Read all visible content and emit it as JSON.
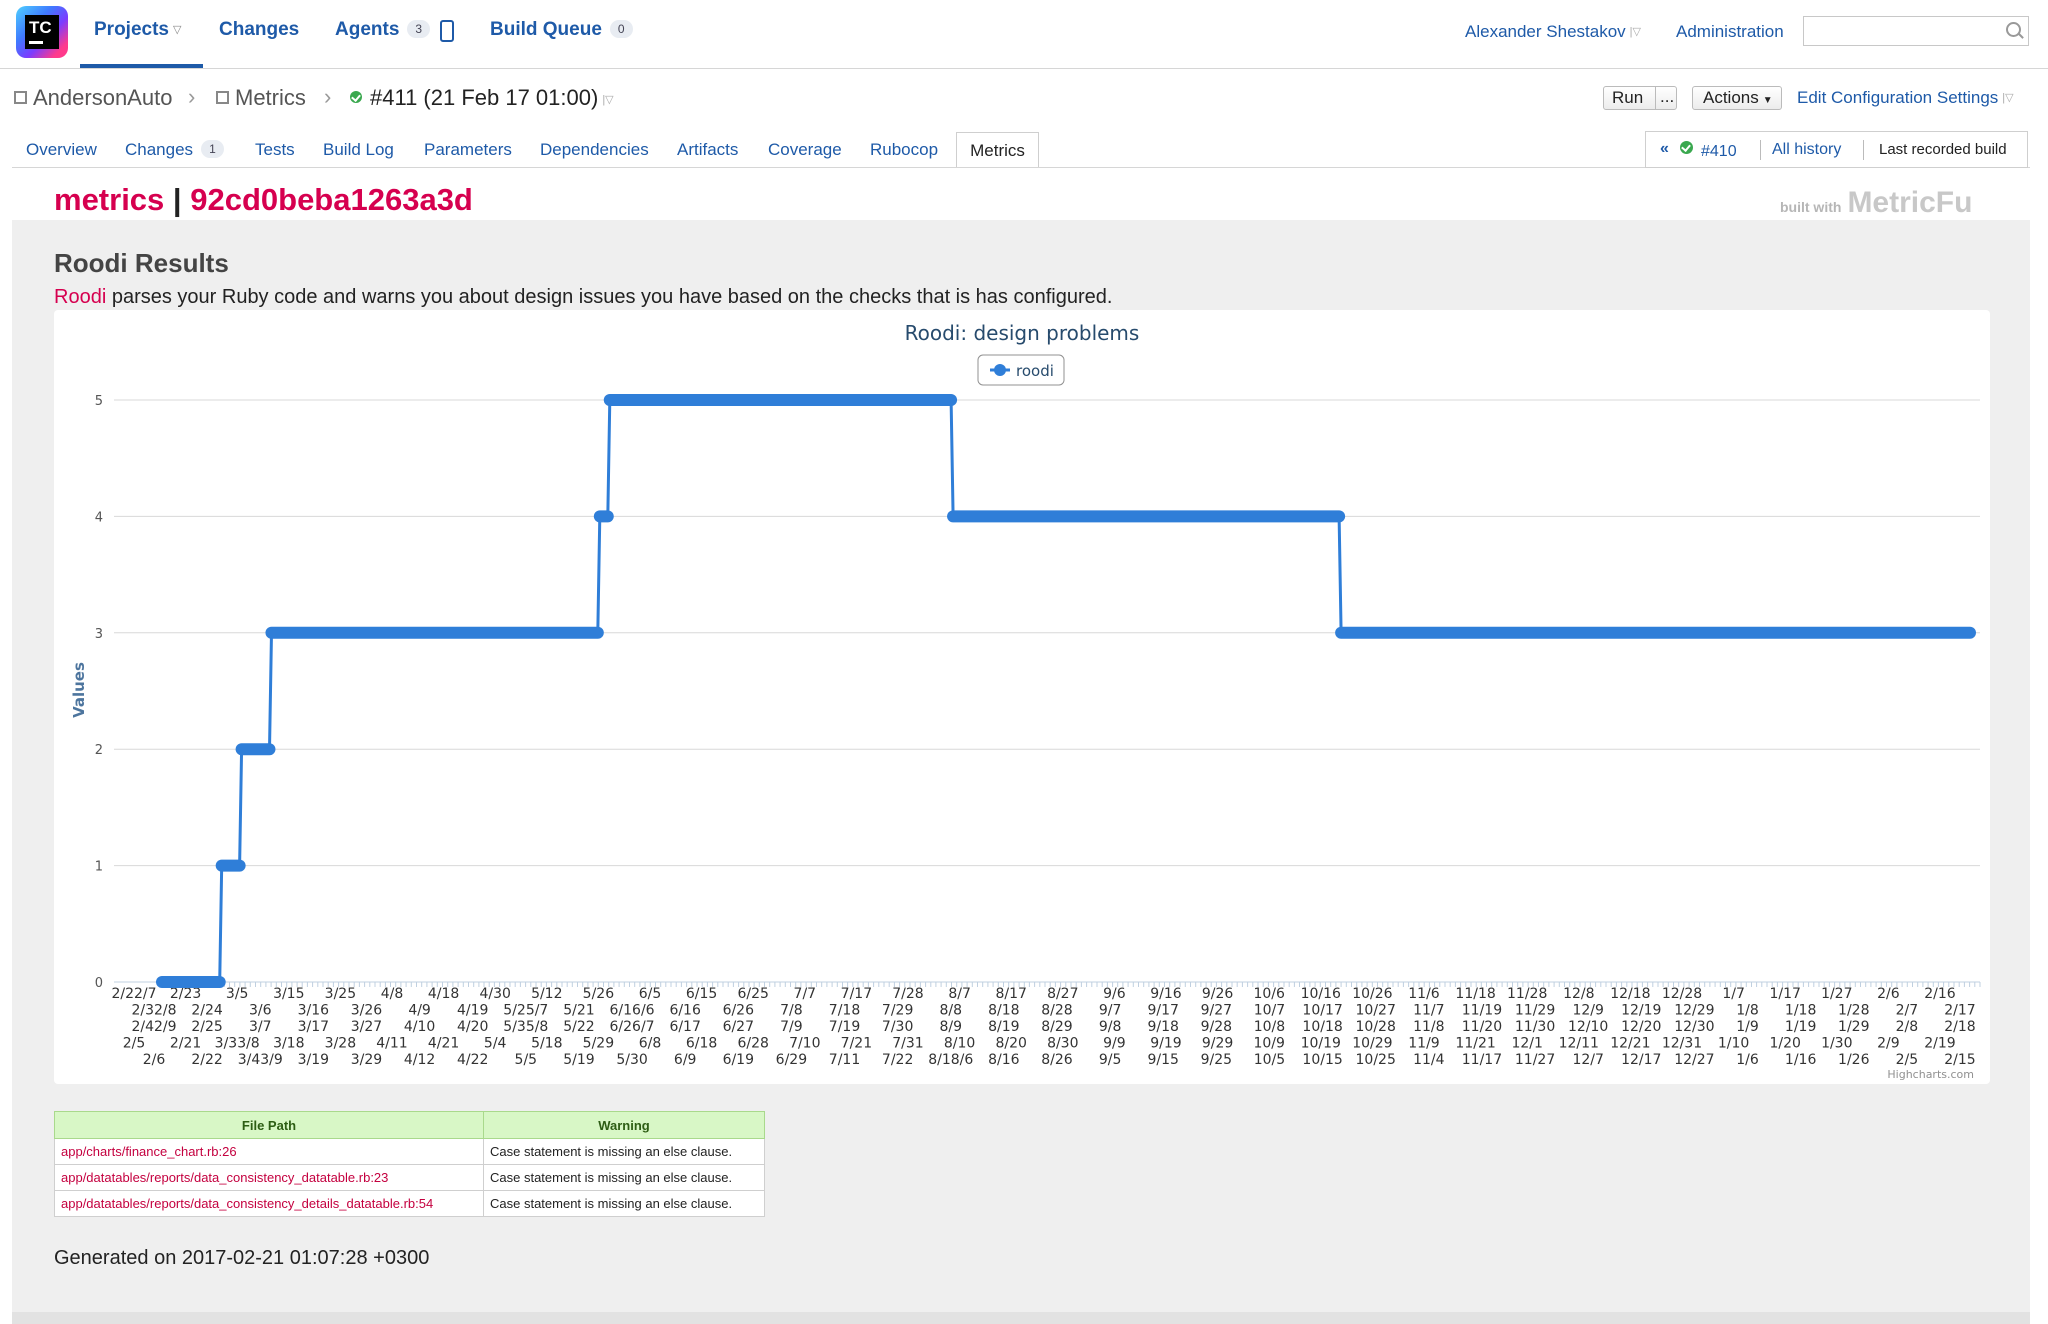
{
  "topnav": {
    "logo_text": "TC",
    "items": [
      {
        "label": "Projects"
      },
      {
        "label": "Changes"
      },
      {
        "label": "Agents",
        "badge": "3"
      },
      {
        "label": "Build Queue",
        "badge": "0"
      }
    ],
    "user": "Alexander Shestakov",
    "admin": "Administration",
    "search_value": ""
  },
  "breadcrumb": {
    "project": "AndersonAuto",
    "config": "Metrics",
    "build": "#411 (21 Feb 17 01:00)"
  },
  "actions": {
    "run": "Run",
    "run_more": "...",
    "actions": "Actions",
    "edit": "Edit Configuration Settings"
  },
  "tabs": [
    {
      "label": "Overview"
    },
    {
      "label": "Changes",
      "badge": "1"
    },
    {
      "label": "Tests"
    },
    {
      "label": "Build Log"
    },
    {
      "label": "Parameters"
    },
    {
      "label": "Dependencies"
    },
    {
      "label": "Artifacts"
    },
    {
      "label": "Coverage"
    },
    {
      "label": "Rubocop"
    },
    {
      "label": "Metrics"
    }
  ],
  "history": {
    "prev_arrow": "«",
    "prev": "#410",
    "all": "All history",
    "last": "Last recorded build"
  },
  "report": {
    "title_left": "metrics",
    "title_sep": "|",
    "title_right": "92cd0beba1263a3d",
    "built_with": "built with",
    "built_brand": "MetricFu",
    "section": "Roodi Results",
    "desc_link": "Roodi",
    "desc_text": " parses your Ruby code and warns you about design issues you have based on the checks that is has configured.",
    "generated": "Generated on 2017-02-21 01:07:28 +0300"
  },
  "chart_data": {
    "type": "line",
    "title": "Roodi: design problems",
    "ylabel": "Values",
    "ylim": [
      0,
      5
    ],
    "yticks": [
      0,
      1,
      2,
      3,
      4,
      5
    ],
    "legend": {
      "position": "top-center",
      "entries": [
        "roodi"
      ]
    },
    "credits": "Highcharts.com",
    "series": [
      {
        "name": "roodi",
        "color": "#2f7ed8",
        "steps": [
          {
            "from": "2/22",
            "to": "3/4",
            "value": 0
          },
          {
            "from": "3/5",
            "to": "3/8",
            "value": 1
          },
          {
            "from": "3/9",
            "to": "3/14",
            "value": 2
          },
          {
            "from": "3/15",
            "to": "5/19",
            "value": 3
          },
          {
            "from": "5/20",
            "to": "5/21",
            "value": 4
          },
          {
            "from": "5/22",
            "to": "7/29",
            "value": 5
          },
          {
            "from": "7/30",
            "to": "10/15",
            "value": 4
          },
          {
            "from": "10/16",
            "to": "2/19",
            "value": 3
          }
        ]
      }
    ],
    "x_label_rows": [
      [
        "2/22/7",
        "2/23",
        "3/5",
        "3/15",
        "3/25",
        "4/8",
        "4/18",
        "4/30",
        "5/12",
        "5/26",
        "6/5",
        "6/15",
        "6/25",
        "7/7",
        "7/17",
        "7/28",
        "8/7",
        "8/17",
        "8/27",
        "9/6",
        "9/16",
        "9/26",
        "10/6",
        "10/16",
        "10/26",
        "11/6",
        "11/18",
        "11/28",
        "12/8",
        "12/18",
        "12/28",
        "1/7",
        "1/17",
        "1/27",
        "2/6",
        "2/16"
      ],
      [
        "2/32/8",
        "2/24",
        "3/6",
        "3/16",
        "3/26",
        "4/9",
        "4/19",
        "5/25/7",
        "5/21",
        "6/16/6",
        "6/16",
        "6/26",
        "7/8",
        "7/18",
        "7/29",
        "8/8",
        "8/18",
        "8/28",
        "9/7",
        "9/17",
        "9/27",
        "10/7",
        "10/17",
        "10/27",
        "11/7",
        "11/19",
        "11/29",
        "12/9",
        "12/19",
        "12/29",
        "1/8",
        "1/18",
        "1/28",
        "2/7",
        "2/17"
      ],
      [
        "2/42/9",
        "2/25",
        "3/7",
        "3/17",
        "3/27",
        "4/10",
        "4/20",
        "5/35/8",
        "5/22",
        "6/26/7",
        "6/17",
        "6/27",
        "7/9",
        "7/19",
        "7/30",
        "8/9",
        "8/19",
        "8/29",
        "9/8",
        "9/18",
        "9/28",
        "10/8",
        "10/18",
        "10/28",
        "11/8",
        "11/20",
        "11/30",
        "12/10",
        "12/20",
        "12/30",
        "1/9",
        "1/19",
        "1/29",
        "2/8",
        "2/18"
      ],
      [
        "2/5",
        "2/21",
        "3/33/8",
        "3/18",
        "3/28",
        "4/11",
        "4/21",
        "5/4",
        "5/18",
        "5/29",
        "6/8",
        "6/18",
        "6/28",
        "7/10",
        "7/21",
        "7/31",
        "8/10",
        "8/20",
        "8/30",
        "9/9",
        "9/19",
        "9/29",
        "10/9",
        "10/19",
        "10/29",
        "11/9",
        "11/21",
        "12/1",
        "12/11",
        "12/21",
        "12/31",
        "1/10",
        "1/20",
        "1/30",
        "2/9",
        "2/19"
      ],
      [
        "2/6",
        "2/22",
        "3/43/9",
        "3/19",
        "3/29",
        "4/12",
        "4/22",
        "5/5",
        "5/19",
        "5/30",
        "6/9",
        "6/19",
        "6/29",
        "7/11",
        "7/22",
        "8/18/6",
        "8/16",
        "8/26",
        "9/5",
        "9/15",
        "9/25",
        "10/5",
        "10/15",
        "10/25",
        "11/4",
        "11/17",
        "11/27",
        "12/7",
        "12/17",
        "12/27",
        "1/6",
        "1/16",
        "1/26",
        "2/5",
        "2/15"
      ]
    ]
  },
  "warnings_table": {
    "headers": [
      "File Path",
      "Warning"
    ],
    "rows": [
      [
        "app/charts/finance_chart.rb:26",
        "Case statement is missing an else clause."
      ],
      [
        "app/datatables/reports/data_consistency_datatable.rb:23",
        "Case statement is missing an else clause."
      ],
      [
        "app/datatables/reports/data_consistency_details_datatable.rb:54",
        "Case statement is missing an else clause."
      ]
    ]
  }
}
